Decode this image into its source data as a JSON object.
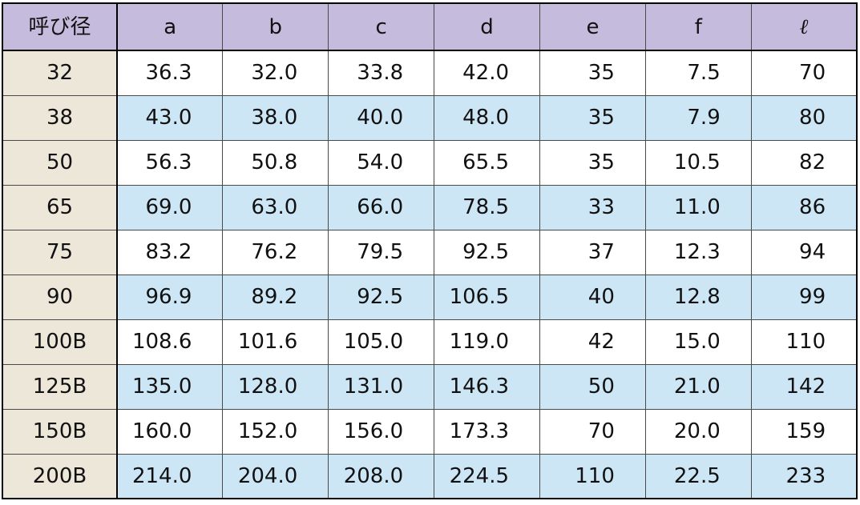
{
  "table": {
    "corner_label": "呼び径",
    "columns": [
      "a",
      "b",
      "c",
      "d",
      "e",
      "f",
      "ℓ"
    ],
    "rows": [
      {
        "size": "32",
        "values": [
          "36.3",
          "32.0",
          "33.8",
          "42.0",
          "35",
          "7.5",
          "70"
        ]
      },
      {
        "size": "38",
        "values": [
          "43.0",
          "38.0",
          "40.0",
          "48.0",
          "35",
          "7.9",
          "80"
        ]
      },
      {
        "size": "50",
        "values": [
          "56.3",
          "50.8",
          "54.0",
          "65.5",
          "35",
          "10.5",
          "82"
        ]
      },
      {
        "size": "65",
        "values": [
          "69.0",
          "63.0",
          "66.0",
          "78.5",
          "33",
          "11.0",
          "86"
        ]
      },
      {
        "size": "75",
        "values": [
          "83.2",
          "76.2",
          "79.5",
          "92.5",
          "37",
          "12.3",
          "94"
        ]
      },
      {
        "size": "90",
        "values": [
          "96.9",
          "89.2",
          "92.5",
          "106.5",
          "40",
          "12.8",
          "99"
        ]
      },
      {
        "size": "100B",
        "values": [
          "108.6",
          "101.6",
          "105.0",
          "119.0",
          "42",
          "15.0",
          "110"
        ]
      },
      {
        "size": "125B",
        "values": [
          "135.0",
          "128.0",
          "131.0",
          "146.3",
          "50",
          "21.0",
          "142"
        ]
      },
      {
        "size": "150B",
        "values": [
          "160.0",
          "152.0",
          "156.0",
          "173.3",
          "70",
          "20.0",
          "159"
        ]
      },
      {
        "size": "200B",
        "values": [
          "214.0",
          "204.0",
          "208.0",
          "224.5",
          "110",
          "22.5",
          "233"
        ]
      }
    ]
  },
  "colors": {
    "header_bg": "#c4bbdd",
    "row_header_bg": "#ede7da",
    "alt_row_bg": "#cde6f5",
    "row_bg": "#ffffff"
  }
}
